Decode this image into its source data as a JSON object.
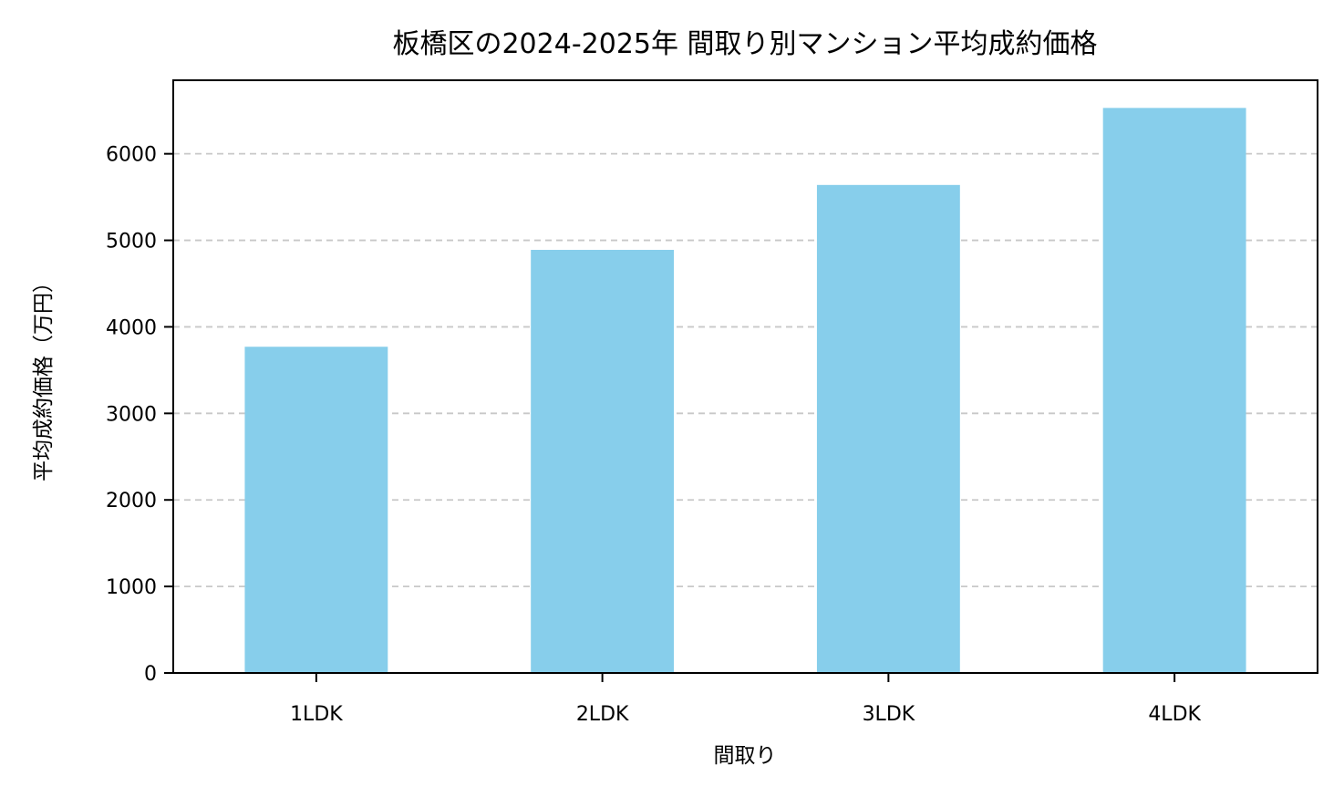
{
  "chart_data": {
    "type": "bar",
    "title": "板橋区の2024-2025年 間取り別マンション平均成約価格",
    "xlabel": "間取り",
    "ylabel": "平均成約価格（万円）",
    "categories": [
      "1LDK",
      "2LDK",
      "3LDK",
      "4LDK"
    ],
    "values": [
      3770,
      4890,
      5640,
      6530
    ],
    "yticks": [
      0,
      1000,
      2000,
      3000,
      4000,
      5000,
      6000
    ],
    "ylim": [
      0,
      6850
    ],
    "grid": "y-dashed",
    "bar_color": "#87ceeb"
  }
}
